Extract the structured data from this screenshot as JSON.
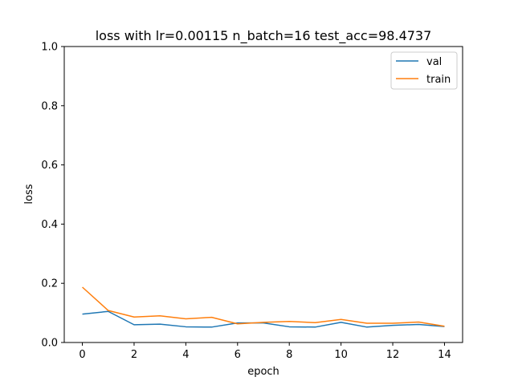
{
  "chart_data": {
    "type": "line",
    "title": "loss with lr=0.00115 n_batch=16 test_acc=98.4737",
    "xlabel": "epoch",
    "ylabel": "loss",
    "xlim": [
      -0.7,
      14.7
    ],
    "ylim": [
      0,
      1.0
    ],
    "xticks": [
      0,
      2,
      4,
      6,
      8,
      10,
      12,
      14
    ],
    "yticks": [
      0.0,
      0.2,
      0.4,
      0.6,
      0.8,
      1.0
    ],
    "xtick_labels": [
      "0",
      "2",
      "4",
      "6",
      "8",
      "10",
      "12",
      "14"
    ],
    "ytick_labels": [
      "0.0",
      "0.2",
      "0.4",
      "0.6",
      "0.8",
      "1.0"
    ],
    "grid": false,
    "legend_position": "top-right",
    "x": [
      0,
      1,
      2,
      3,
      4,
      5,
      6,
      7,
      8,
      9,
      10,
      11,
      12,
      13,
      14
    ],
    "series": [
      {
        "name": "val",
        "color": "#1f77b4",
        "values": [
          0.096,
          0.105,
          0.06,
          0.062,
          0.053,
          0.052,
          0.066,
          0.066,
          0.053,
          0.052,
          0.068,
          0.052,
          0.058,
          0.061,
          0.054
        ]
      },
      {
        "name": "train",
        "color": "#ff7f0e",
        "values": [
          0.187,
          0.108,
          0.086,
          0.09,
          0.08,
          0.085,
          0.063,
          0.068,
          0.071,
          0.067,
          0.078,
          0.065,
          0.065,
          0.069,
          0.055
        ]
      }
    ]
  }
}
